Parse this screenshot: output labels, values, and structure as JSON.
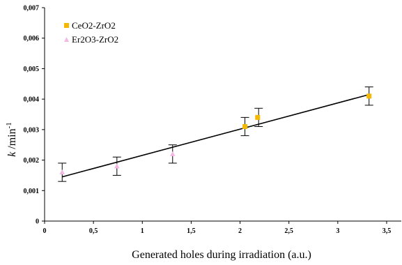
{
  "chart_data": {
    "type": "scatter",
    "title": "",
    "xlabel": "Generated holes during irradiation (a.u.)",
    "ylabel": {
      "base": "k",
      "rest": " /min",
      "sup": "-1"
    },
    "xlim": [
      0,
      3.65
    ],
    "ylim": [
      0,
      0.007
    ],
    "x_ticks": [
      "0",
      "0,5",
      "1",
      "1,5",
      "2",
      "2,5",
      "3",
      "3,5"
    ],
    "x_tick_values": [
      0,
      0.5,
      1,
      1.5,
      2,
      2.5,
      3,
      3.5
    ],
    "y_ticks": [
      "0",
      "0,001",
      "0,002",
      "0,003",
      "0,004",
      "0,005",
      "0,006",
      "0,007"
    ],
    "y_tick_values": [
      0,
      0.001,
      0.002,
      0.003,
      0.004,
      0.005,
      0.006,
      0.007
    ],
    "grid": false,
    "legend_position": "top-left",
    "series": [
      {
        "name": "CeO2-ZrO2",
        "color": "#f5b800",
        "marker": "square",
        "points": [
          {
            "x": 2.05,
            "y": 0.0031
          },
          {
            "x": 2.18,
            "y": 0.0034
          },
          {
            "x": 3.32,
            "y": 0.0041
          }
        ]
      },
      {
        "name": "Er2O3-ZrO2",
        "color": "#f4b8e6",
        "marker": "triangle",
        "points": [
          {
            "x": 0.18,
            "y": 0.0016
          },
          {
            "x": 0.74,
            "y": 0.0018
          },
          {
            "x": 1.31,
            "y": 0.0022
          }
        ]
      }
    ],
    "error_bars": [
      {
        "x": 0.18,
        "low": 0.0013,
        "high": 0.0019
      },
      {
        "x": 0.74,
        "low": 0.0015,
        "high": 0.0021
      },
      {
        "x": 1.31,
        "low": 0.0019,
        "high": 0.0025
      },
      {
        "x": 2.05,
        "low": 0.0028,
        "high": 0.0034
      },
      {
        "x": 2.19,
        "low": 0.0031,
        "high": 0.0037
      },
      {
        "x": 3.32,
        "low": 0.0038,
        "high": 0.0044
      }
    ],
    "trendline": {
      "x1": 0.18,
      "y1": 0.00145,
      "x2": 3.32,
      "y2": 0.00415,
      "color": "#000000"
    }
  }
}
